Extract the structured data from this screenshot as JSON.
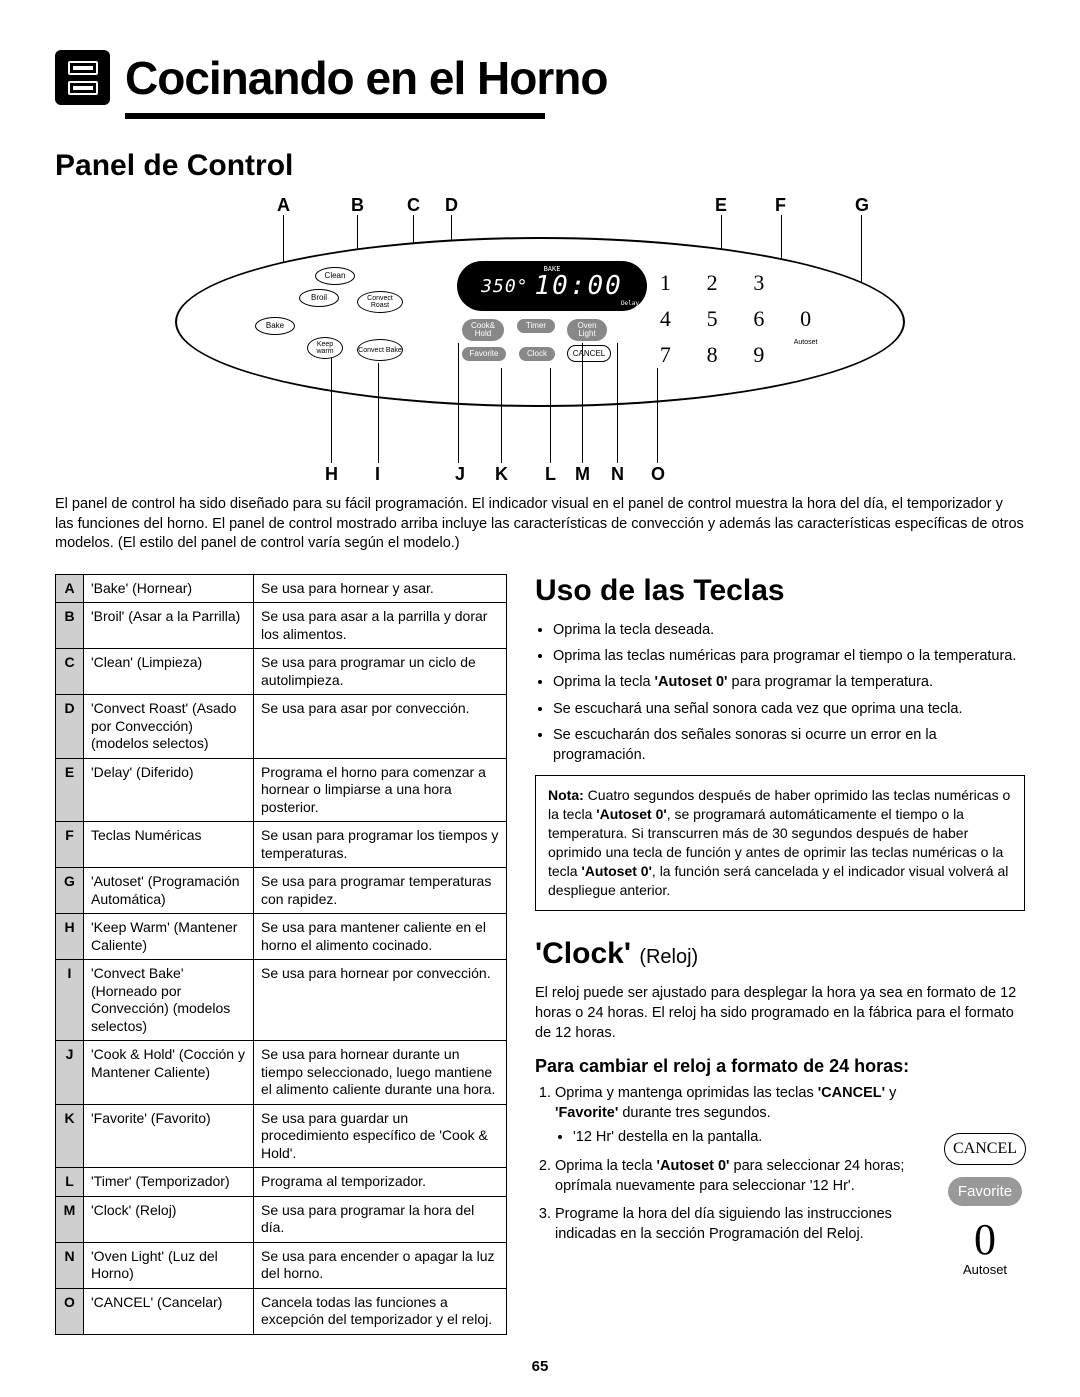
{
  "header": {
    "title": "Cocinando en el Horno"
  },
  "section1": {
    "title": "Panel de Control"
  },
  "diagram": {
    "labels_top": [
      "A",
      "B",
      "C",
      "D",
      "E",
      "F",
      "G"
    ],
    "labels_bottom": [
      "H",
      "I",
      "J",
      "K",
      "L",
      "M",
      "N",
      "O"
    ],
    "lcd": {
      "mode": "BAKE",
      "temp": "350°",
      "time": "10:00",
      "delay": "Delay"
    },
    "pads": {
      "clean": "Clean",
      "broil": "Broil",
      "bake": "Bake",
      "keepwarm": "Keep warm",
      "convect_roast": "Convect Roast",
      "convect_bake": "Convect Bake",
      "cook_hold": "Cook& Hold",
      "timer": "Timer",
      "oven_light": "Oven Light",
      "favorite": "Favorite",
      "clock": "Clock",
      "cancel": "CANCEL",
      "autoset": "Autoset"
    },
    "keypad": [
      "1",
      "2",
      "3",
      "",
      "4",
      "5",
      "6",
      "0",
      "7",
      "8",
      "9",
      ""
    ]
  },
  "intro": "El panel de control ha sido diseñado para su fácil programación. El indicador visual en el panel de control muestra la hora del día, el temporizador y las funciones del horno. El panel de control mostrado arriba incluye las características de convección y además las características específicas de otros modelos.  (El estilo del panel de control varía según el modelo.)",
  "table": {
    "rows": [
      {
        "k": "A",
        "n": "'Bake' (Hornear)",
        "d": "Se usa para hornear y asar."
      },
      {
        "k": "B",
        "n": "'Broil' (Asar a la Parrilla)",
        "d": "Se usa para asar a la parrilla y dorar los alimentos."
      },
      {
        "k": "C",
        "n": "'Clean' (Limpieza)",
        "d": "Se usa para programar un ciclo de autolimpieza."
      },
      {
        "k": "D",
        "n": "'Convect Roast' (Asado por Convección) (modelos selectos)",
        "d": "Se usa para asar por convección."
      },
      {
        "k": "E",
        "n": "'Delay' (Diferido)",
        "d": "Programa el horno para comenzar a hornear o limpiarse a una hora posterior."
      },
      {
        "k": "F",
        "n": "Teclas Numéricas",
        "d": "Se usan para programar los tiempos y temperaturas."
      },
      {
        "k": "G",
        "n": "'Autoset' (Programación Automática)",
        "d": "Se usa para programar temperaturas con rapidez."
      },
      {
        "k": "H",
        "n": "'Keep Warm' (Mantener Caliente)",
        "d": "Se usa para mantener caliente en el horno el alimento cocinado."
      },
      {
        "k": "I",
        "n": "'Convect Bake' (Horneado por Convección) (modelos selectos)",
        "d": "Se usa para hornear por convección."
      },
      {
        "k": "J",
        "n": "'Cook & Hold' (Cocción y Mantener Caliente)",
        "d": "Se usa para hornear durante un tiempo seleccionado, luego mantiene el alimento caliente durante una hora."
      },
      {
        "k": "K",
        "n": "'Favorite' (Favorito)",
        "d": "Se usa para guardar un procedimiento específico de 'Cook & Hold'."
      },
      {
        "k": "L",
        "n": "'Timer' (Temporizador)",
        "d": "Programa al temporizador."
      },
      {
        "k": "M",
        "n": "'Clock' (Reloj)",
        "d": "Se usa para programar la hora del día."
      },
      {
        "k": "N",
        "n": "'Oven Light' (Luz del Horno)",
        "d": "Se usa para encender o apagar la luz del horno."
      },
      {
        "k": "O",
        "n": "'CANCEL' (Cancelar)",
        "d": "Cancela todas las funciones a excepción del temporizador y el reloj."
      }
    ]
  },
  "uso": {
    "title": "Uso de las Teclas",
    "bullets": [
      "Oprima la tecla deseada.",
      "Oprima las teclas numéricas para programar el tiempo o la temperatura.",
      "Oprima la tecla <b>'Autoset 0'</b> para programar la temperatura.",
      "Se escuchará una señal sonora cada vez que oprima una tecla.",
      "Se escucharán dos señales sonoras si ocurre un error en la programación."
    ],
    "note": "<b>Nota:</b> Cuatro segundos después de haber oprimido las teclas numéricas o la tecla <b>'Autoset 0'</b>, se programará automáticamente el tiempo o la temperatura. Si transcurren más de 30 segundos después de haber oprimido una tecla de función y antes de oprimir las teclas numéricas o la tecla <b>'Autoset 0'</b>, la función será cancelada y el indicador visual volverá al despliegue anterior."
  },
  "clock": {
    "title": "'Clock'",
    "sub": "(Reloj)",
    "intro": "El reloj puede ser ajustado para desplegar la hora ya sea en formato de 12 horas o 24 horas. El reloj ha sido programado en la fábrica para el formato de 12 horas.",
    "h3": "Para cambiar el reloj a formato de 24 horas:",
    "steps": [
      "Oprima y mantenga oprimidas las teclas <b>'CANCEL'</b> y <b>'Favorite'</b> durante tres segundos.",
      "Oprima la tecla <b>'Autoset 0'</b> para seleccionar 24 horas; oprímala nuevamente para seleccionar '12 Hr'.",
      "Programe la hora del día siguiendo las instrucciones indicadas en la sección Programación del Reloj."
    ],
    "step1_sub": "'12 Hr' destella en la pantalla."
  },
  "side": {
    "cancel": "CANCEL",
    "favorite": "Favorite",
    "zero": "0",
    "autoset": "Autoset"
  },
  "page": "65"
}
